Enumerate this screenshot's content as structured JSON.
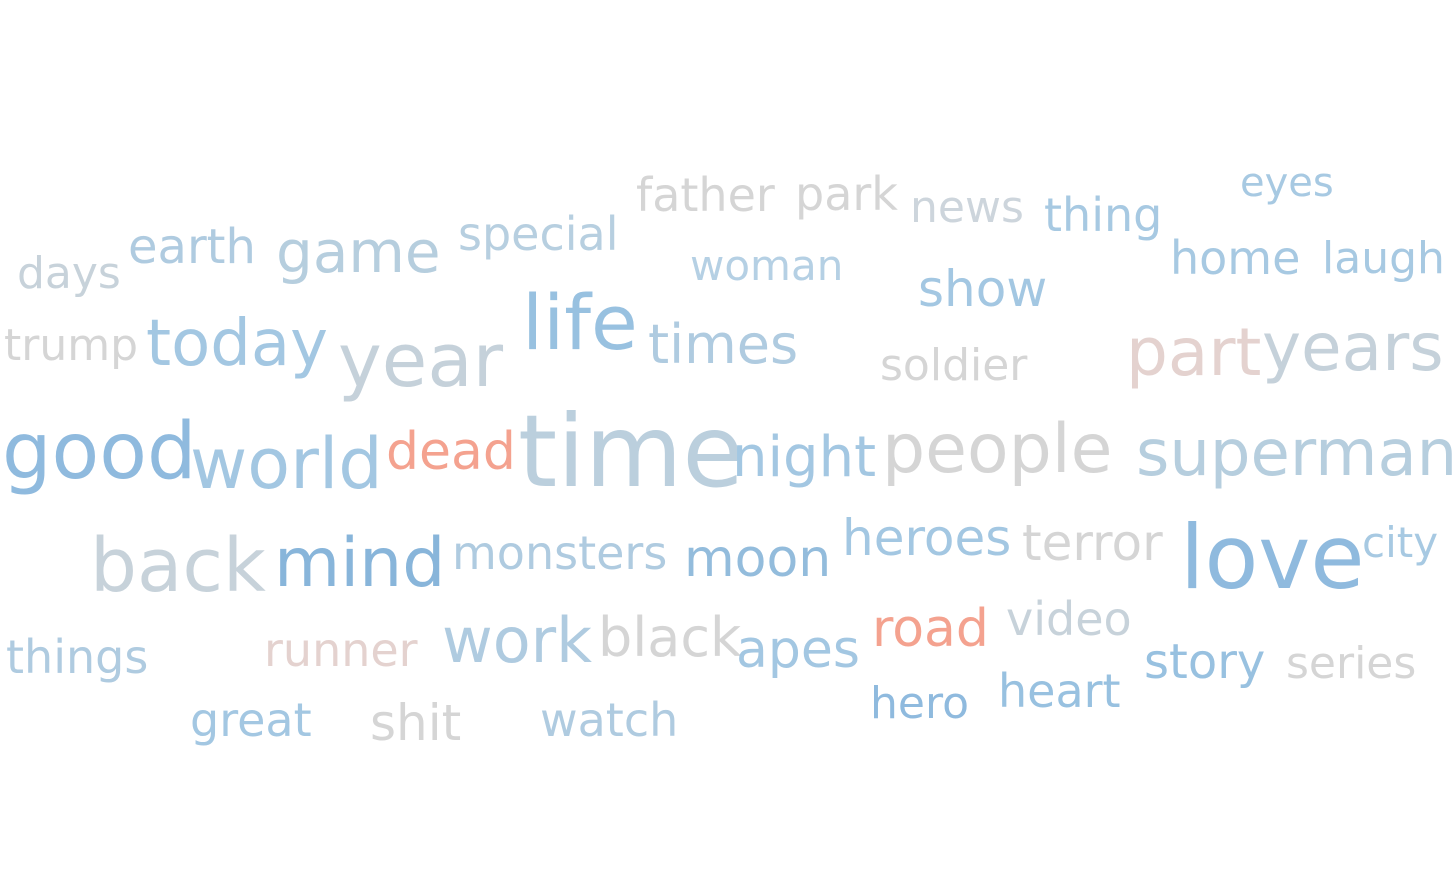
{
  "words": [
    {
      "text": "eyes",
      "color": "#a7c9e2"
    },
    {
      "text": "father",
      "color": "#d5d5d5"
    },
    {
      "text": "park",
      "color": "#d5d5d5"
    },
    {
      "text": "news",
      "color": "#cdd5dc"
    },
    {
      "text": "thing",
      "color": "#a7c9e2"
    },
    {
      "text": "special",
      "color": "#b7cfe0"
    },
    {
      "text": "earth",
      "color": "#afcbe0"
    },
    {
      "text": "game",
      "color": "#b6cede"
    },
    {
      "text": "woman",
      "color": "#b5d0e4"
    },
    {
      "text": "home",
      "color": "#a7c9e2"
    },
    {
      "text": "laugh",
      "color": "#a7c9e2"
    },
    {
      "text": "days",
      "color": "#c7d2da"
    },
    {
      "text": "show",
      "color": "#a3c7e2"
    },
    {
      "text": "trump",
      "color": "#d5d5d5"
    },
    {
      "text": "today",
      "color": "#a3c7e2"
    },
    {
      "text": "year",
      "color": "#c5d1da"
    },
    {
      "text": "life",
      "color": "#98c1e0"
    },
    {
      "text": "times",
      "color": "#afcbe0"
    },
    {
      "text": "soldier",
      "color": "#d5d5d5"
    },
    {
      "text": "part",
      "color": "#e4d2cf"
    },
    {
      "text": "years",
      "color": "#c5d1da"
    },
    {
      "text": "good",
      "color": "#8fbade"
    },
    {
      "text": "world",
      "color": "#a3c7e2"
    },
    {
      "text": "dead",
      "color": "#f4a28f"
    },
    {
      "text": "time",
      "color": "#bbcfdd"
    },
    {
      "text": "night",
      "color": "#a3c7e2"
    },
    {
      "text": "people",
      "color": "#d5d5d5"
    },
    {
      "text": "superman",
      "color": "#b6cede"
    },
    {
      "text": "back",
      "color": "#c7d2da"
    },
    {
      "text": "mind",
      "color": "#88b5da"
    },
    {
      "text": "monsters",
      "color": "#afcbe0"
    },
    {
      "text": "moon",
      "color": "#93bcdc"
    },
    {
      "text": "heroes",
      "color": "#a3c7e2"
    },
    {
      "text": "terror",
      "color": "#d5d5d5"
    },
    {
      "text": "love",
      "color": "#8fbade"
    },
    {
      "text": "city",
      "color": "#a7c9e2"
    },
    {
      "text": "things",
      "color": "#afcbe0"
    },
    {
      "text": "runner",
      "color": "#e4d2cf"
    },
    {
      "text": "work",
      "color": "#afcbe0"
    },
    {
      "text": "black",
      "color": "#d5d5d5"
    },
    {
      "text": "apes",
      "color": "#a3c7e2"
    },
    {
      "text": "road",
      "color": "#f4a28f"
    },
    {
      "text": "video",
      "color": "#c7d2da"
    },
    {
      "text": "story",
      "color": "#98c1e0"
    },
    {
      "text": "series",
      "color": "#d5d5d5"
    },
    {
      "text": "hero",
      "color": "#8fbade"
    },
    {
      "text": "heart",
      "color": "#98c1e0"
    },
    {
      "text": "great",
      "color": "#a3c7e2"
    },
    {
      "text": "shit",
      "color": "#d5d5d5"
    },
    {
      "text": "watch",
      "color": "#afcbe0"
    }
  ]
}
